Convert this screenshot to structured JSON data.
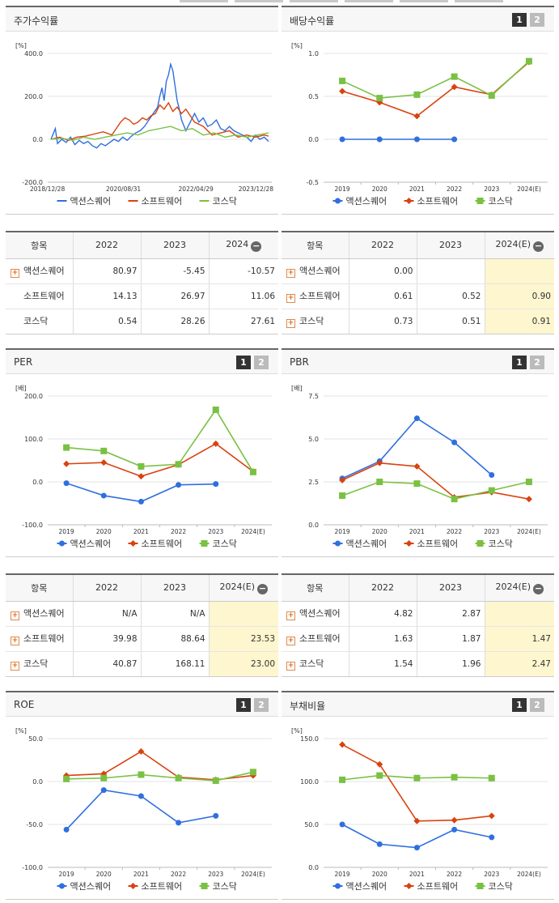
{
  "colors": {
    "series1": "#2f6fdf",
    "series2": "#d9420e",
    "series3": "#7ac143"
  },
  "panels": [
    {
      "id": "stock-return",
      "title": "주가수익률",
      "has_pager": false,
      "chart_data": {
        "type": "line",
        "ylabel": "[%]",
        "ylim": [
          -200,
          400
        ],
        "yticks": [
          "400.0",
          "200.0",
          "0.0",
          "-200.0"
        ],
        "yticks_values": [
          400,
          200,
          0,
          -200
        ],
        "xticks": [
          "2018/12/28",
          "2020/08/31",
          "2022/04/29",
          "2023/12/28"
        ],
        "xticks_values": [
          0,
          0.333,
          0.666,
          1
        ],
        "series": [
          {
            "name": "액션스퀘어",
            "marker": "none",
            "x": [
              0,
              0.02,
              0.03,
              0.05,
              0.07,
              0.09,
              0.11,
              0.13,
              0.15,
              0.17,
              0.19,
              0.21,
              0.23,
              0.25,
              0.27,
              0.29,
              0.31,
              0.33,
              0.35,
              0.37,
              0.39,
              0.41,
              0.43,
              0.45,
              0.47,
              0.49,
              0.5,
              0.51,
              0.52,
              0.53,
              0.54,
              0.55,
              0.56,
              0.57,
              0.58,
              0.59,
              0.6,
              0.62,
              0.64,
              0.66,
              0.68,
              0.7,
              0.72,
              0.74,
              0.76,
              0.78,
              0.8,
              0.82,
              0.84,
              0.86,
              0.88,
              0.9,
              0.92,
              0.94,
              0.96,
              0.98,
              1
            ],
            "values": [
              0,
              50,
              -20,
              0,
              -15,
              10,
              -25,
              -5,
              -20,
              -10,
              -30,
              -40,
              -20,
              -30,
              -15,
              0,
              -10,
              10,
              -5,
              15,
              30,
              40,
              60,
              90,
              120,
              150,
              200,
              240,
              180,
              270,
              300,
              350,
              320,
              250,
              180,
              140,
              90,
              40,
              80,
              120,
              80,
              100,
              60,
              70,
              90,
              50,
              40,
              60,
              40,
              30,
              20,
              10,
              -10,
              20,
              0,
              10,
              -10
            ]
          },
          {
            "name": "소프트웨어",
            "marker": "none",
            "x": [
              0,
              0.04,
              0.08,
              0.12,
              0.16,
              0.2,
              0.24,
              0.28,
              0.3,
              0.32,
              0.34,
              0.36,
              0.38,
              0.4,
              0.42,
              0.44,
              0.46,
              0.48,
              0.5,
              0.52,
              0.54,
              0.56,
              0.58,
              0.6,
              0.62,
              0.64,
              0.66,
              0.7,
              0.74,
              0.78,
              0.82,
              0.86,
              0.9,
              0.94,
              0.98,
              1
            ],
            "values": [
              0,
              10,
              -5,
              10,
              15,
              25,
              35,
              20,
              50,
              80,
              100,
              90,
              70,
              80,
              100,
              90,
              110,
              120,
              160,
              140,
              170,
              130,
              150,
              120,
              140,
              110,
              80,
              60,
              20,
              30,
              40,
              10,
              20,
              10,
              20,
              15
            ]
          },
          {
            "name": "코스닥",
            "marker": "none",
            "x": [
              0,
              0.05,
              0.1,
              0.15,
              0.2,
              0.25,
              0.3,
              0.35,
              0.4,
              0.45,
              0.5,
              0.55,
              0.6,
              0.65,
              0.7,
              0.75,
              0.8,
              0.85,
              0.9,
              0.95,
              1
            ],
            "values": [
              0,
              5,
              -5,
              10,
              0,
              10,
              20,
              30,
              20,
              40,
              50,
              60,
              40,
              50,
              20,
              30,
              10,
              20,
              10,
              20,
              30
            ]
          }
        ],
        "legend": [
          "액션스퀘어",
          "소프트웨어",
          "코스닥"
        ]
      },
      "table": {
        "header": [
          "항목",
          "2022",
          "2023",
          "2024"
        ],
        "estimate_col": false,
        "rows": [
          {
            "name": "액션스퀘어",
            "plus": true,
            "values": [
              "80.97",
              "-5.45",
              "-10.57"
            ]
          },
          {
            "name": "소프트웨어",
            "plus": false,
            "values": [
              "14.13",
              "26.97",
              "11.06"
            ]
          },
          {
            "name": "코스닥",
            "plus": false,
            "values": [
              "0.54",
              "28.26",
              "27.61"
            ]
          }
        ]
      }
    },
    {
      "id": "dividend-yield",
      "title": "배당수익률",
      "has_pager": true,
      "chart_data": {
        "type": "line",
        "ylabel": "[%]",
        "ylim": [
          -0.5,
          1.0
        ],
        "yticks": [
          "1.0",
          "0.5",
          "0.0",
          "-0.5"
        ],
        "yticks_values": [
          1.0,
          0.5,
          0.0,
          -0.5
        ],
        "categories": [
          "2019",
          "2020",
          "2021",
          "2022",
          "2023",
          "2024(E)"
        ],
        "series": [
          {
            "name": "액션스퀘어",
            "marker": "circle",
            "values": [
              0.0,
              0.0,
              0.0,
              0.0,
              null,
              null
            ]
          },
          {
            "name": "소프트웨어",
            "marker": "diamond",
            "values": [
              0.56,
              0.43,
              0.27,
              0.61,
              0.52,
              0.9
            ]
          },
          {
            "name": "코스닥",
            "marker": "square",
            "values": [
              0.68,
              0.48,
              0.52,
              0.73,
              0.51,
              0.91
            ]
          }
        ],
        "legend": [
          "액션스퀘어",
          "소프트웨어",
          "코스닥"
        ]
      },
      "table": {
        "header": [
          "항목",
          "2022",
          "2023",
          "2024(E)"
        ],
        "estimate_col": true,
        "rows": [
          {
            "name": "액션스퀘어",
            "plus": true,
            "values": [
              "0.00",
              "",
              ""
            ]
          },
          {
            "name": "소프트웨어",
            "plus": true,
            "values": [
              "0.61",
              "0.52",
              "0.90"
            ]
          },
          {
            "name": "코스닥",
            "plus": true,
            "values": [
              "0.73",
              "0.51",
              "0.91"
            ]
          }
        ]
      }
    },
    {
      "id": "per",
      "title": "PER",
      "has_pager": true,
      "chart_data": {
        "type": "line",
        "ylabel": "[배]",
        "ylim": [
          -100,
          200
        ],
        "yticks": [
          "200.0",
          "100.0",
          "0.0",
          "-100.0"
        ],
        "yticks_values": [
          200,
          100,
          0,
          -100
        ],
        "categories": [
          "2019",
          "2020",
          "2021",
          "2022",
          "2023",
          "2024(E)"
        ],
        "series": [
          {
            "name": "액션스퀘어",
            "marker": "circle",
            "values": [
              -3,
              -32,
              -46,
              -7,
              -5,
              null
            ]
          },
          {
            "name": "소프트웨어",
            "marker": "diamond",
            "values": [
              42,
              45,
              13,
              40,
              89,
              24
            ]
          },
          {
            "name": "코스닥",
            "marker": "square",
            "values": [
              80,
              72,
              36,
              41,
              168,
              23
            ]
          }
        ],
        "legend": [
          "액션스퀘어",
          "소프트웨어",
          "코스닥"
        ]
      },
      "table": {
        "header": [
          "항목",
          "2022",
          "2023",
          "2024(E)"
        ],
        "estimate_col": true,
        "rows": [
          {
            "name": "액션스퀘어",
            "plus": true,
            "values": [
              "N/A",
              "N/A",
              ""
            ]
          },
          {
            "name": "소프트웨어",
            "plus": true,
            "values": [
              "39.98",
              "88.64",
              "23.53"
            ]
          },
          {
            "name": "코스닥",
            "plus": true,
            "values": [
              "40.87",
              "168.11",
              "23.00"
            ]
          }
        ]
      }
    },
    {
      "id": "pbr",
      "title": "PBR",
      "has_pager": true,
      "chart_data": {
        "type": "line",
        "ylabel": "[배]",
        "ylim": [
          0,
          7.5
        ],
        "yticks": [
          "7.5",
          "5.0",
          "2.5",
          "0.0"
        ],
        "yticks_values": [
          7.5,
          5.0,
          2.5,
          0.0
        ],
        "categories": [
          "2019",
          "2020",
          "2021",
          "2022",
          "2023",
          "2024(E)"
        ],
        "series": [
          {
            "name": "액션스퀘어",
            "marker": "circle",
            "values": [
              2.7,
              3.7,
              6.2,
              4.8,
              2.9,
              null
            ]
          },
          {
            "name": "소프트웨어",
            "marker": "diamond",
            "values": [
              2.6,
              3.6,
              3.4,
              1.6,
              1.9,
              1.5
            ]
          },
          {
            "name": "코스닥",
            "marker": "square",
            "values": [
              1.7,
              2.5,
              2.4,
              1.5,
              2.0,
              2.5
            ]
          }
        ],
        "legend": [
          "액션스퀘어",
          "소프트웨어",
          "코스닥"
        ]
      },
      "table": {
        "header": [
          "항목",
          "2022",
          "2023",
          "2024(E)"
        ],
        "estimate_col": true,
        "rows": [
          {
            "name": "액션스퀘어",
            "plus": true,
            "values": [
              "4.82",
              "2.87",
              ""
            ]
          },
          {
            "name": "소프트웨어",
            "plus": true,
            "values": [
              "1.63",
              "1.87",
              "1.47"
            ]
          },
          {
            "name": "코스닥",
            "plus": true,
            "values": [
              "1.54",
              "1.96",
              "2.47"
            ]
          }
        ]
      }
    },
    {
      "id": "roe",
      "title": "ROE",
      "has_pager": true,
      "chart_data": {
        "type": "line",
        "ylabel": "[%]",
        "ylim": [
          -100,
          50
        ],
        "yticks": [
          "50.0",
          "0.0",
          "-50.0",
          "-100.0"
        ],
        "yticks_values": [
          50,
          0,
          -50,
          -100
        ],
        "categories": [
          "2019",
          "2020",
          "2021",
          "2022",
          "2023",
          "2024(E)"
        ],
        "series": [
          {
            "name": "액션스퀘어",
            "marker": "circle",
            "values": [
              -56,
              -10,
              -17,
              -48,
              -40,
              null
            ]
          },
          {
            "name": "소프트웨어",
            "marker": "diamond",
            "values": [
              7,
              9,
              35,
              5,
              2,
              7
            ]
          },
          {
            "name": "코스닥",
            "marker": "square",
            "values": [
              3,
              4,
              8,
              4,
              1,
              11
            ]
          }
        ],
        "legend": [
          "액션스퀘어",
          "소프트웨어",
          "코스닥"
        ]
      }
    },
    {
      "id": "debt-ratio",
      "title": "부채비율",
      "has_pager": true,
      "chart_data": {
        "type": "line",
        "ylabel": "[%]",
        "ylim": [
          0,
          150
        ],
        "yticks": [
          "150.0",
          "100.0",
          "50.0",
          "0.0"
        ],
        "yticks_values": [
          150,
          100,
          50,
          0
        ],
        "categories": [
          "2019",
          "2020",
          "2021",
          "2022",
          "2023",
          "2024(E)"
        ],
        "series": [
          {
            "name": "액션스퀘어",
            "marker": "circle",
            "values": [
              50,
              27,
              23,
              44,
              35,
              null
            ]
          },
          {
            "name": "소프트웨어",
            "marker": "diamond",
            "values": [
              143,
              120,
              54,
              55,
              60,
              null
            ]
          },
          {
            "name": "코스닥",
            "marker": "square",
            "values": [
              102,
              107,
              104,
              105,
              104,
              null
            ]
          }
        ],
        "legend": [
          "액션스퀘어",
          "소프트웨어",
          "코스닥"
        ]
      }
    }
  ],
  "pager": {
    "page1": "1",
    "page2": "2"
  },
  "table_toggle": "−"
}
